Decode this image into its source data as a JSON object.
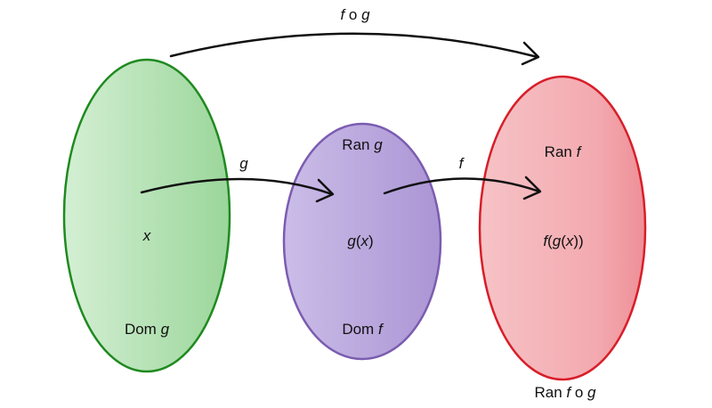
{
  "sets": {
    "domain_g": {
      "element": "x",
      "label_prefix": "Dom ",
      "label_var": "g",
      "fill": "#a9dca8",
      "stroke": "#1f8a1f"
    },
    "middle": {
      "top_prefix": "Ran ",
      "top_var": "g",
      "element_fn": "g",
      "element_arg": "x",
      "bottom_prefix": "Dom ",
      "bottom_var": "f",
      "fill": "#b9a6dc",
      "stroke": "#7b5cb0"
    },
    "range_f": {
      "top_prefix": "Ran ",
      "top_var": "f",
      "element_outer": "f",
      "element_inner": "g",
      "element_arg": "x",
      "below_prefix": "Ran ",
      "below_f": "f",
      "below_op": " o ",
      "below_g": "g",
      "fill": "#f2a9ae",
      "stroke": "#d81e2a"
    }
  },
  "arrows": {
    "g_label": "g",
    "f_label": "f",
    "composite_f": "f",
    "composite_op": " o ",
    "composite_g": "g"
  }
}
